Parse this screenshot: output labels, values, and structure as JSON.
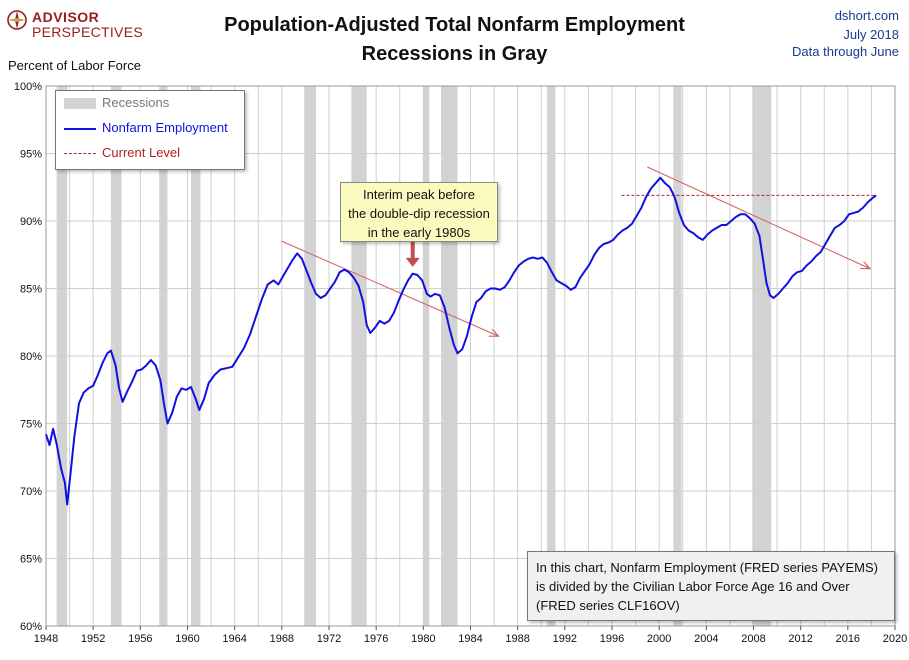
{
  "logo": {
    "top": "ADVISOR",
    "bottom": "PERSPECTIVES"
  },
  "header": {
    "title_line1": "Population-Adjusted Total Nonfarm Employment",
    "title_line2": "Recessions in Gray",
    "source": "dshort.com",
    "date": "July 2018",
    "data_through": "Data through June"
  },
  "chart_data": {
    "type": "line",
    "ylabel": "Percent of Labor Force",
    "xlim": [
      1948,
      2020
    ],
    "ylim": [
      60,
      100
    ],
    "y_ticks": [
      100,
      95,
      90,
      85,
      80,
      75,
      70,
      65,
      60
    ],
    "y_tick_labels": [
      "100%",
      "95%",
      "90%",
      "85%",
      "80%",
      "75%",
      "70%",
      "65%",
      "60%"
    ],
    "x_ticks": [
      1948,
      1952,
      1956,
      1960,
      1964,
      1968,
      1972,
      1976,
      1980,
      1984,
      1988,
      1992,
      1996,
      2000,
      2004,
      2008,
      2012,
      2016,
      2020
    ],
    "x_tick_labels": [
      "1948",
      "1952",
      "1956",
      "1960",
      "1964",
      "1968",
      "1972",
      "1976",
      "1980",
      "1984",
      "1988",
      "1992",
      "1996",
      "2000",
      "2004",
      "2008",
      "2012",
      "2016",
      "2020"
    ],
    "legend": {
      "recessions": "Recessions",
      "nonfarm": "Nonfarm Employment",
      "current": "Current Level"
    },
    "colors": {
      "series": "#1010e0",
      "recession": "#d3d3d3",
      "trend": "#d06060",
      "current": "#b22222",
      "grid": "#cfcfcf"
    },
    "recessions": [
      [
        1948.9,
        1949.8
      ],
      [
        1953.5,
        1954.4
      ],
      [
        1957.6,
        1958.3
      ],
      [
        1960.3,
        1961.1
      ],
      [
        1969.9,
        1970.9
      ],
      [
        1973.9,
        1975.2
      ],
      [
        1980.0,
        1980.5
      ],
      [
        1981.5,
        1982.9
      ],
      [
        1990.5,
        1991.2
      ],
      [
        2001.2,
        2001.9
      ],
      [
        2007.9,
        2009.5
      ]
    ],
    "series": [
      {
        "name": "Nonfarm Employment",
        "points": [
          [
            1948.0,
            74.2
          ],
          [
            1948.3,
            73.4
          ],
          [
            1948.6,
            74.6
          ],
          [
            1948.9,
            73.5
          ],
          [
            1949.3,
            71.6
          ],
          [
            1949.6,
            70.6
          ],
          [
            1949.8,
            69.0
          ],
          [
            1950.1,
            71.5
          ],
          [
            1950.4,
            74.0
          ],
          [
            1950.8,
            76.5
          ],
          [
            1951.2,
            77.3
          ],
          [
            1951.6,
            77.6
          ],
          [
            1952.0,
            77.8
          ],
          [
            1952.4,
            78.6
          ],
          [
            1952.8,
            79.5
          ],
          [
            1953.2,
            80.2
          ],
          [
            1953.5,
            80.4
          ],
          [
            1953.9,
            79.3
          ],
          [
            1954.2,
            77.6
          ],
          [
            1954.5,
            76.6
          ],
          [
            1954.9,
            77.4
          ],
          [
            1955.3,
            78.1
          ],
          [
            1955.7,
            78.9
          ],
          [
            1956.1,
            79.0
          ],
          [
            1956.5,
            79.3
          ],
          [
            1956.9,
            79.7
          ],
          [
            1957.3,
            79.3
          ],
          [
            1957.7,
            78.2
          ],
          [
            1958.0,
            76.5
          ],
          [
            1958.3,
            75.0
          ],
          [
            1958.7,
            75.8
          ],
          [
            1959.1,
            77.0
          ],
          [
            1959.5,
            77.6
          ],
          [
            1959.9,
            77.5
          ],
          [
            1960.3,
            77.7
          ],
          [
            1960.7,
            76.8
          ],
          [
            1961.0,
            76.0
          ],
          [
            1961.4,
            76.8
          ],
          [
            1961.8,
            78.0
          ],
          [
            1962.3,
            78.6
          ],
          [
            1962.8,
            79.0
          ],
          [
            1963.3,
            79.1
          ],
          [
            1963.8,
            79.2
          ],
          [
            1964.3,
            79.9
          ],
          [
            1964.8,
            80.6
          ],
          [
            1965.3,
            81.6
          ],
          [
            1965.8,
            82.9
          ],
          [
            1966.3,
            84.2
          ],
          [
            1966.8,
            85.3
          ],
          [
            1967.3,
            85.6
          ],
          [
            1967.7,
            85.3
          ],
          [
            1968.1,
            85.9
          ],
          [
            1968.5,
            86.5
          ],
          [
            1968.9,
            87.1
          ],
          [
            1969.3,
            87.6
          ],
          [
            1969.7,
            87.2
          ],
          [
            1970.1,
            86.3
          ],
          [
            1970.5,
            85.4
          ],
          [
            1970.9,
            84.6
          ],
          [
            1971.3,
            84.3
          ],
          [
            1971.7,
            84.5
          ],
          [
            1972.1,
            85.0
          ],
          [
            1972.5,
            85.5
          ],
          [
            1972.9,
            86.2
          ],
          [
            1973.3,
            86.4
          ],
          [
            1973.7,
            86.2
          ],
          [
            1974.1,
            85.8
          ],
          [
            1974.5,
            85.2
          ],
          [
            1974.9,
            84.0
          ],
          [
            1975.2,
            82.3
          ],
          [
            1975.5,
            81.7
          ],
          [
            1975.9,
            82.1
          ],
          [
            1976.3,
            82.6
          ],
          [
            1976.7,
            82.4
          ],
          [
            1977.1,
            82.6
          ],
          [
            1977.5,
            83.2
          ],
          [
            1977.9,
            84.1
          ],
          [
            1978.3,
            84.9
          ],
          [
            1978.7,
            85.6
          ],
          [
            1979.1,
            86.1
          ],
          [
            1979.5,
            86.0
          ],
          [
            1979.9,
            85.6
          ],
          [
            1980.3,
            84.6
          ],
          [
            1980.6,
            84.4
          ],
          [
            1981.0,
            84.6
          ],
          [
            1981.4,
            84.5
          ],
          [
            1981.8,
            83.6
          ],
          [
            1982.2,
            82.1
          ],
          [
            1982.6,
            80.8
          ],
          [
            1982.9,
            80.2
          ],
          [
            1983.3,
            80.5
          ],
          [
            1983.7,
            81.5
          ],
          [
            1984.1,
            82.9
          ],
          [
            1984.5,
            84.0
          ],
          [
            1984.9,
            84.3
          ],
          [
            1985.3,
            84.8
          ],
          [
            1985.7,
            85.0
          ],
          [
            1986.1,
            85.0
          ],
          [
            1986.5,
            84.9
          ],
          [
            1986.9,
            85.1
          ],
          [
            1987.3,
            85.6
          ],
          [
            1987.7,
            86.2
          ],
          [
            1988.1,
            86.7
          ],
          [
            1988.5,
            87.0
          ],
          [
            1988.9,
            87.2
          ],
          [
            1989.3,
            87.3
          ],
          [
            1989.7,
            87.2
          ],
          [
            1990.1,
            87.3
          ],
          [
            1990.5,
            86.9
          ],
          [
            1990.9,
            86.2
          ],
          [
            1991.3,
            85.6
          ],
          [
            1991.7,
            85.4
          ],
          [
            1992.1,
            85.2
          ],
          [
            1992.5,
            84.9
          ],
          [
            1992.9,
            85.1
          ],
          [
            1993.3,
            85.8
          ],
          [
            1993.7,
            86.3
          ],
          [
            1994.1,
            86.8
          ],
          [
            1994.5,
            87.5
          ],
          [
            1994.9,
            88.0
          ],
          [
            1995.3,
            88.3
          ],
          [
            1995.7,
            88.4
          ],
          [
            1996.1,
            88.6
          ],
          [
            1996.5,
            89.0
          ],
          [
            1996.9,
            89.3
          ],
          [
            1997.3,
            89.5
          ],
          [
            1997.7,
            89.8
          ],
          [
            1998.1,
            90.4
          ],
          [
            1998.5,
            91.0
          ],
          [
            1998.9,
            91.8
          ],
          [
            1999.3,
            92.4
          ],
          [
            1999.7,
            92.8
          ],
          [
            2000.1,
            93.2
          ],
          [
            2000.5,
            92.8
          ],
          [
            2000.9,
            92.5
          ],
          [
            2001.3,
            91.8
          ],
          [
            2001.7,
            90.6
          ],
          [
            2002.1,
            89.7
          ],
          [
            2002.5,
            89.3
          ],
          [
            2002.9,
            89.1
          ],
          [
            2003.3,
            88.8
          ],
          [
            2003.7,
            88.6
          ],
          [
            2004.1,
            89.0
          ],
          [
            2004.5,
            89.3
          ],
          [
            2004.9,
            89.5
          ],
          [
            2005.3,
            89.7
          ],
          [
            2005.7,
            89.7
          ],
          [
            2006.1,
            90.0
          ],
          [
            2006.5,
            90.3
          ],
          [
            2006.9,
            90.5
          ],
          [
            2007.3,
            90.5
          ],
          [
            2007.7,
            90.2
          ],
          [
            2008.1,
            89.8
          ],
          [
            2008.5,
            88.9
          ],
          [
            2008.8,
            87.2
          ],
          [
            2009.1,
            85.4
          ],
          [
            2009.4,
            84.5
          ],
          [
            2009.7,
            84.3
          ],
          [
            2010.1,
            84.6
          ],
          [
            2010.5,
            85.0
          ],
          [
            2010.9,
            85.4
          ],
          [
            2011.3,
            85.9
          ],
          [
            2011.7,
            86.2
          ],
          [
            2012.1,
            86.3
          ],
          [
            2012.5,
            86.7
          ],
          [
            2012.9,
            87.0
          ],
          [
            2013.3,
            87.4
          ],
          [
            2013.7,
            87.7
          ],
          [
            2014.1,
            88.3
          ],
          [
            2014.5,
            88.9
          ],
          [
            2014.9,
            89.5
          ],
          [
            2015.3,
            89.7
          ],
          [
            2015.7,
            90.0
          ],
          [
            2016.1,
            90.5
          ],
          [
            2016.5,
            90.6
          ],
          [
            2016.9,
            90.7
          ],
          [
            2017.3,
            91.0
          ],
          [
            2017.7,
            91.4
          ],
          [
            2018.1,
            91.7
          ],
          [
            2018.4,
            91.9
          ]
        ]
      }
    ],
    "current_level": {
      "value": 91.9,
      "x_start": 1996.8,
      "x_end": 2018.4
    },
    "trendlines": [
      {
        "from": [
          1968.0,
          88.5
        ],
        "to": [
          1986.3,
          81.5
        ]
      },
      {
        "from": [
          1999.0,
          94.0
        ],
        "to": [
          2017.8,
          86.5
        ]
      }
    ],
    "annotation_arrow": {
      "x": 1979.1,
      "y_from": 89.6,
      "y_to": 86.6
    },
    "callout_lines": [
      "Interim peak before",
      "the double-dip recession",
      "in the early 1980s"
    ],
    "note_lines": [
      "In this chart, Nonfarm Employment (FRED series PAYEMS)",
      "is divided by the Civilian Labor Force Age 16 and Over",
      "(FRED series CLF16OV)"
    ]
  }
}
